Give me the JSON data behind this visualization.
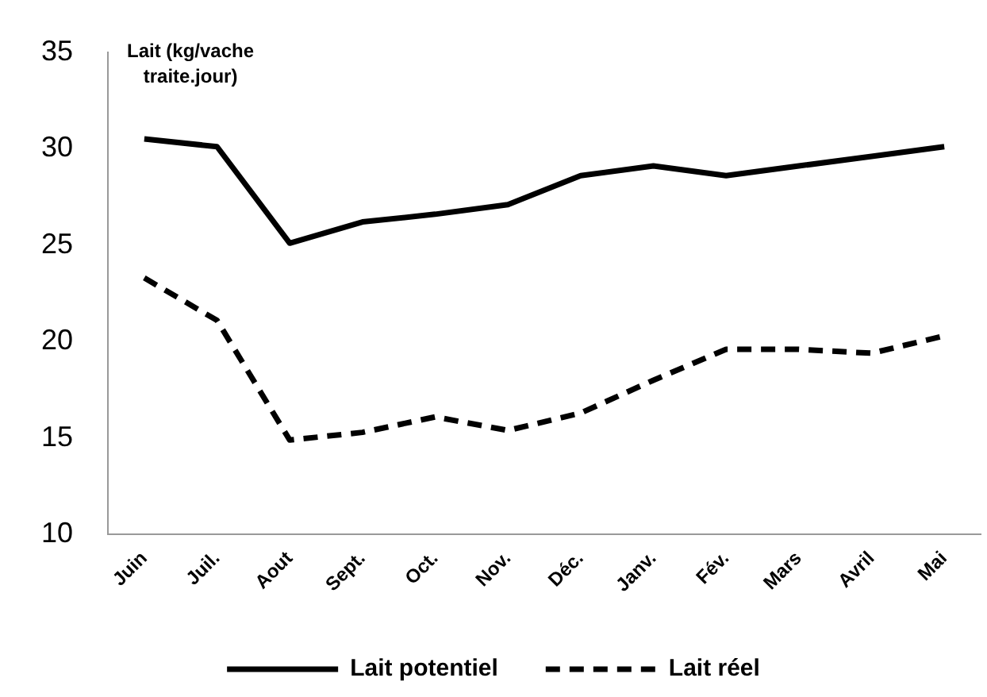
{
  "chart_data": {
    "type": "line",
    "ylabel": "Lait (kg/vache traite.jour)",
    "categories": [
      "Juin",
      "Juil.",
      "Aout",
      "Sept.",
      "Oct.",
      "Nov.",
      "Déc.",
      "Janv.",
      "Fév.",
      "Mars",
      "Avril",
      "Mai"
    ],
    "series": [
      {
        "name": "Lait potentiel",
        "color": "#000000",
        "line_style": "solid",
        "values": [
          30.5,
          30.1,
          25.1,
          26.2,
          26.6,
          27.1,
          28.6,
          29.1,
          28.6,
          29.1,
          29.6,
          30.1
        ]
      },
      {
        "name": "Lait réel",
        "color": "#000000",
        "line_style": "dashed",
        "values": [
          23.3,
          21.1,
          14.9,
          15.3,
          16.1,
          15.4,
          16.3,
          18,
          19.6,
          19.6,
          19.4,
          20.3
        ]
      }
    ],
    "ylim": [
      10,
      35
    ],
    "yticks": [
      10,
      15,
      20,
      25,
      30,
      35
    ],
    "grid": false,
    "legend": "bottom",
    "marker": "none"
  }
}
